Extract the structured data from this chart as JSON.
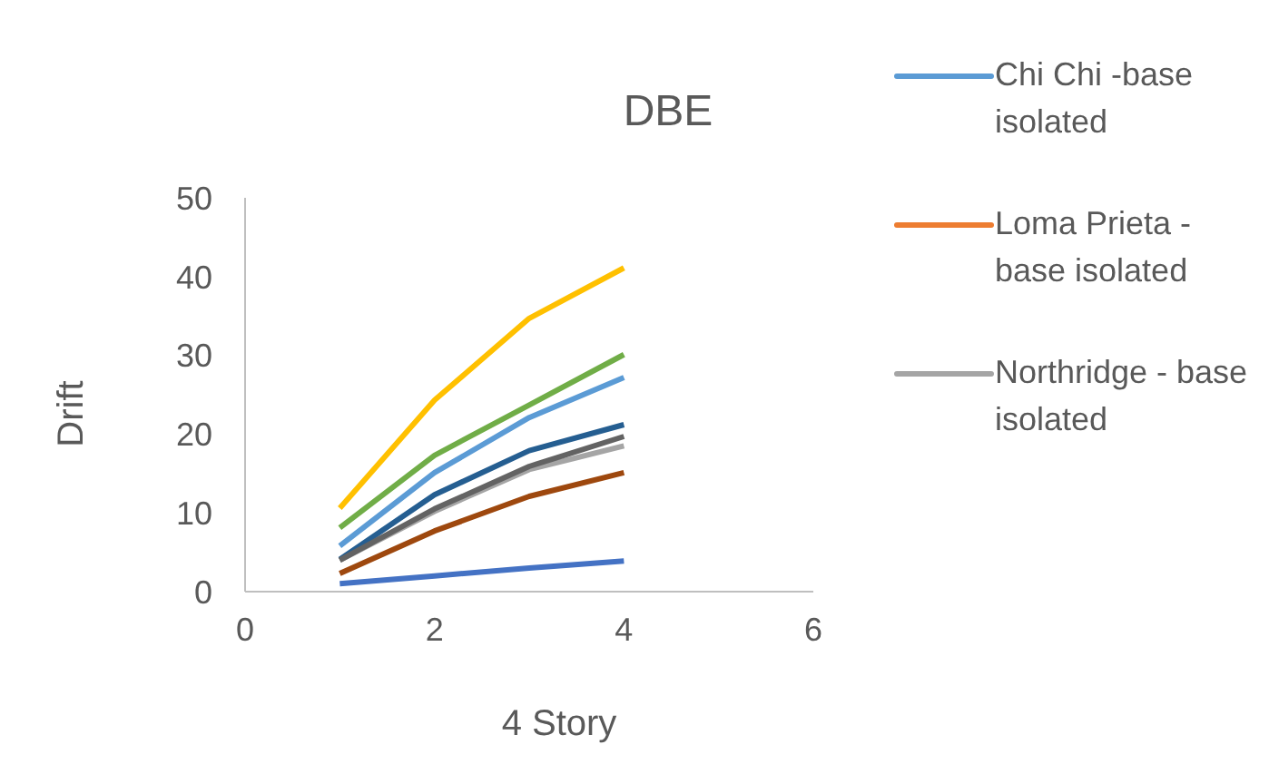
{
  "chart_data": {
    "type": "line",
    "title": "DBE",
    "xlabel": "4 Story",
    "ylabel": "Drift",
    "x": [
      1,
      2,
      3,
      4
    ],
    "xlim": [
      0,
      6
    ],
    "xticks": [
      0,
      2,
      4,
      6
    ],
    "ylim": [
      0,
      50
    ],
    "yticks": [
      0,
      10,
      20,
      30,
      40,
      50
    ],
    "grid": false,
    "legend": "right",
    "marker": "none",
    "series": [
      {
        "name": "Chi Chi -base isolated",
        "color": "#5b9bd5",
        "values": [
          5.8,
          15.1,
          22.1,
          27.2
        ]
      },
      {
        "name": "Loma Prieta - base isolated",
        "color": "#ed7d31",
        "values": [
          null,
          null,
          null,
          null
        ]
      },
      {
        "name": "Northridge - base isolated",
        "color": "#a5a5a5",
        "values": [
          4.0,
          10.2,
          15.5,
          18.5
        ]
      },
      {
        "color": "#ffc000",
        "values": [
          10.6,
          24.3,
          34.7,
          41.1
        ]
      },
      {
        "color": "#4472c4",
        "values": [
          1.0,
          2.0,
          3.0,
          3.9
        ]
      },
      {
        "color": "#70ad47",
        "values": [
          8.1,
          17.3,
          23.7,
          30.1
        ]
      },
      {
        "color": "#255e91",
        "values": [
          4.1,
          12.3,
          17.9,
          21.2
        ]
      },
      {
        "color": "#9e480e",
        "values": [
          2.3,
          7.7,
          12.1,
          15.1
        ]
      },
      {
        "color": "#636363",
        "values": [
          4.0,
          10.5,
          15.9,
          19.7
        ]
      }
    ]
  }
}
